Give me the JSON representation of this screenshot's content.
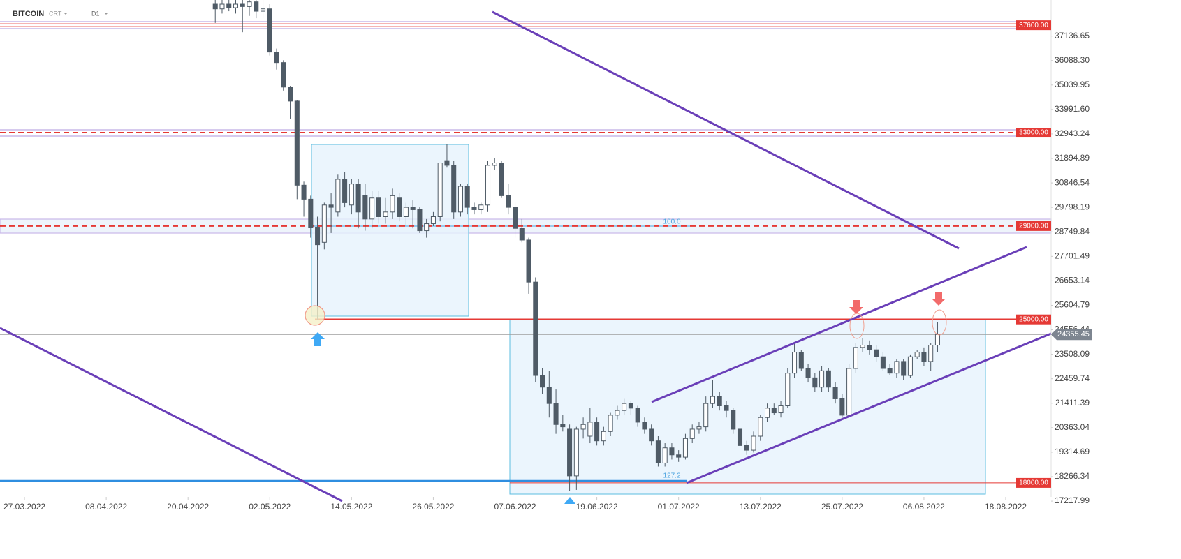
{
  "chart_data": {
    "type": "candlestick",
    "title": "BITCOIN",
    "subtitle": "CRT",
    "timeframe": "D1",
    "up_color": "#ffffff",
    "down_color": "#4f5b66",
    "outline_color": "#4f5b66",
    "level_color": "#e53935",
    "xlim": [
      -3.59,
      150.66
    ],
    "xticks": [
      {
        "value": 0,
        "label": "27.03.2022"
      },
      {
        "value": 12,
        "label": "08.04.2022"
      },
      {
        "value": 24,
        "label": "20.04.2022"
      },
      {
        "value": 36,
        "label": "02.05.2022"
      },
      {
        "value": 48,
        "label": "14.05.2022"
      },
      {
        "value": 60,
        "label": "26.05.2022"
      },
      {
        "value": 72,
        "label": "07.06.2022"
      },
      {
        "value": 84,
        "label": "19.06.2022"
      },
      {
        "value": 96,
        "label": "01.07.2022"
      },
      {
        "value": 108,
        "label": "13.07.2022"
      },
      {
        "value": 120,
        "label": "25.07.2022"
      },
      {
        "value": 132,
        "label": "06.08.2022"
      },
      {
        "value": 144,
        "label": "18.08.2022"
      }
    ],
    "ylim": [
      17280,
      38680
    ],
    "yticks": [
      37136.65,
      {
        "value": 36088.3,
        "label": "36088.30"
      },
      35039.95,
      {
        "value": 33991.6,
        "label": "33991.60"
      },
      32943.24,
      31894.89,
      30846.54,
      29798.19,
      28749.84,
      27701.49,
      26653.14,
      25604.79,
      24556.44,
      23508.09,
      22459.74,
      21411.39,
      20363.04,
      19314.69,
      18266.34,
      17217.99
    ],
    "levels": [
      {
        "value": 37600,
        "label": "37600.00",
        "style": "double"
      },
      {
        "value": 33000,
        "label": "33000.00",
        "style": "dashed"
      },
      {
        "value": 29000,
        "label": "29000.00",
        "style": "dashed"
      },
      {
        "value": 25000,
        "label": "25000.00",
        "style": "solid"
      },
      {
        "value": 18000,
        "label": "18000.00",
        "style": "thin"
      }
    ],
    "current_price": {
      "value": 24355.45,
      "label": "24355.45"
    },
    "annotations": [
      "100.0",
      "127.2"
    ],
    "candles": [
      [
        28,
        38500,
        38800,
        37700,
        38300
      ],
      [
        29,
        38300,
        38700,
        38100,
        38500
      ],
      [
        30,
        38500,
        38800,
        38200,
        38350
      ],
      [
        31,
        38350,
        38700,
        38100,
        38500
      ],
      [
        32,
        38500,
        38800,
        37300,
        38400
      ],
      [
        33,
        38400,
        38800,
        38000,
        38600
      ],
      [
        34,
        38600,
        38900,
        37900,
        38200
      ],
      [
        35,
        38200,
        38700,
        37900,
        38300
      ],
      [
        36,
        38300,
        38500,
        36300,
        36450
      ],
      [
        37,
        36450,
        36600,
        35700,
        36000
      ],
      [
        38,
        36000,
        36100,
        34800,
        34950
      ],
      [
        39,
        34950,
        35000,
        33600,
        34350
      ],
      [
        40,
        34350,
        34400,
        30150,
        30750
      ],
      [
        41,
        30750,
        30900,
        29400,
        30150
      ],
      [
        42,
        30150,
        30300,
        28500,
        28950
      ],
      [
        43,
        28950,
        29400,
        24960,
        28200
      ],
      [
        44,
        28300,
        30000,
        28000,
        29900
      ],
      [
        45,
        29900,
        30400,
        28700,
        29800
      ],
      [
        46,
        29600,
        31200,
        29400,
        31000
      ],
      [
        47,
        31000,
        31300,
        29800,
        30000
      ],
      [
        48,
        29900,
        31000,
        29500,
        30800
      ],
      [
        49,
        30800,
        31000,
        28900,
        29600
      ],
      [
        50,
        30300,
        30800,
        28800,
        29300
      ],
      [
        51,
        29300,
        30500,
        28900,
        30200
      ],
      [
        52,
        30200,
        30500,
        29100,
        29400
      ],
      [
        53,
        29400,
        30200,
        29100,
        29600
      ],
      [
        54,
        29600,
        30600,
        29300,
        30300
      ],
      [
        55,
        30200,
        30400,
        29200,
        29400
      ],
      [
        56,
        29400,
        30000,
        29000,
        29800
      ],
      [
        57,
        29800,
        30100,
        28900,
        29700
      ],
      [
        58,
        29700,
        29800,
        28700,
        28800
      ],
      [
        59,
        28800,
        29300,
        28500,
        29100
      ],
      [
        60,
        29100,
        29600,
        29000,
        29400
      ],
      [
        61,
        29400,
        31700,
        29200,
        31700
      ],
      [
        62,
        31800,
        32500,
        31500,
        31600
      ],
      [
        63,
        31600,
        31800,
        29300,
        29600
      ],
      [
        64,
        29600,
        30800,
        29400,
        30700
      ],
      [
        65,
        30700,
        30800,
        29500,
        29800
      ],
      [
        66,
        29800,
        30000,
        29500,
        29700
      ],
      [
        67,
        29700,
        30000,
        29500,
        29900
      ],
      [
        68,
        29900,
        31800,
        29600,
        31600
      ],
      [
        69,
        31600,
        31900,
        31400,
        31700
      ],
      [
        70,
        31700,
        31800,
        30200,
        30300
      ],
      [
        71,
        30300,
        30800,
        29500,
        29800
      ],
      [
        72,
        29800,
        30000,
        28500,
        28900
      ],
      [
        73,
        28900,
        29300,
        28300,
        28400
      ],
      [
        74,
        28400,
        28500,
        26100,
        26600
      ],
      [
        75,
        26600,
        26800,
        22300,
        22600
      ],
      [
        76,
        22600,
        22900,
        21800,
        22100
      ],
      [
        77,
        22100,
        22800,
        20800,
        21400
      ],
      [
        78,
        21400,
        22000,
        20100,
        20500
      ],
      [
        79,
        20500,
        20900,
        20200,
        20400
      ],
      [
        80,
        20300,
        20500,
        17650,
        18300
      ],
      [
        81,
        18300,
        20400,
        17700,
        20300
      ],
      [
        82,
        20300,
        20800,
        19900,
        20500
      ],
      [
        83,
        20000,
        21200,
        19700,
        20600
      ],
      [
        84,
        20600,
        20800,
        19600,
        19800
      ],
      [
        85,
        19800,
        20400,
        19600,
        20200
      ],
      [
        86,
        20200,
        21000,
        20000,
        20900
      ],
      [
        87,
        20900,
        21300,
        20700,
        21100
      ],
      [
        88,
        21100,
        21600,
        20900,
        21400
      ],
      [
        89,
        21400,
        21500,
        20900,
        21200
      ],
      [
        90,
        21200,
        21300,
        20400,
        20600
      ],
      [
        91,
        20600,
        20800,
        20100,
        20300
      ],
      [
        92,
        20300,
        20500,
        19600,
        19800
      ],
      [
        93,
        19800,
        20000,
        18700,
        18850
      ],
      [
        94,
        18850,
        19700,
        18700,
        19500
      ],
      [
        95,
        19500,
        19700,
        19000,
        19200
      ],
      [
        96,
        19200,
        19400,
        18900,
        19100
      ],
      [
        97,
        19100,
        20100,
        19000,
        19900
      ],
      [
        98,
        19900,
        20500,
        19700,
        20300
      ],
      [
        99,
        20300,
        20600,
        20100,
        20400
      ],
      [
        100,
        20400,
        21700,
        20200,
        21400
      ],
      [
        101,
        21400,
        22400,
        21200,
        21700
      ],
      [
        102,
        21700,
        21900,
        21100,
        21300
      ],
      [
        103,
        21300,
        21500,
        20800,
        21100
      ],
      [
        104,
        21100,
        21200,
        20100,
        20300
      ],
      [
        105,
        20300,
        20500,
        19400,
        19600
      ],
      [
        106,
        19600,
        19800,
        19200,
        19400
      ],
      [
        107,
        19400,
        20200,
        19300,
        20000
      ],
      [
        108,
        20000,
        20900,
        19800,
        20800
      ],
      [
        109,
        20800,
        21400,
        20600,
        21200
      ],
      [
        110,
        21200,
        21400,
        20900,
        21000
      ],
      [
        111,
        21000,
        21500,
        20800,
        21300
      ],
      [
        112,
        21300,
        22900,
        21200,
        22700
      ],
      [
        113,
        22700,
        24000,
        22500,
        23600
      ],
      [
        114,
        23600,
        23700,
        22800,
        22900
      ],
      [
        115,
        22900,
        23100,
        22300,
        22500
      ],
      [
        116,
        22500,
        22700,
        21900,
        22100
      ],
      [
        117,
        22100,
        23000,
        21900,
        22800
      ],
      [
        118,
        22800,
        22900,
        21900,
        22100
      ],
      [
        119,
        22100,
        22300,
        21400,
        21600
      ],
      [
        120,
        21600,
        21800,
        20800,
        20900
      ],
      [
        121,
        20900,
        23100,
        20800,
        22900
      ],
      [
        122,
        22900,
        24000,
        22700,
        23800
      ],
      [
        123,
        23800,
        24200,
        23600,
        23900
      ],
      [
        124,
        23900,
        24100,
        23500,
        23700
      ],
      [
        125,
        23700,
        23900,
        23200,
        23400
      ],
      [
        126,
        23400,
        23600,
        22800,
        22900
      ],
      [
        127,
        22900,
        23100,
        22600,
        22700
      ],
      [
        128,
        22700,
        23300,
        22500,
        23200
      ],
      [
        129,
        23200,
        23300,
        22400,
        22600
      ],
      [
        130,
        22600,
        23500,
        22500,
        23400
      ],
      [
        131,
        23400,
        23700,
        23300,
        23600
      ],
      [
        132,
        23600,
        23800,
        23000,
        23200
      ],
      [
        133,
        23200,
        24000,
        22800,
        23900
      ],
      [
        134,
        23900,
        24900,
        23600,
        24355.45
      ]
    ]
  }
}
